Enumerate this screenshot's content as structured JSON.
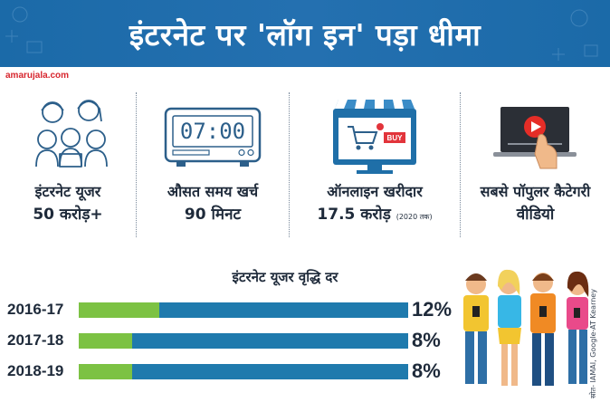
{
  "header": {
    "title": "इंटरनेट पर 'लॉग इन' पड़ा धीमा",
    "brand": "amarujala.com"
  },
  "stats": [
    {
      "label": "इंटरनेट यूजर",
      "value": "50 करोड़+",
      "note": "",
      "icon": "users-group-icon"
    },
    {
      "label": "औसत समय खर्च",
      "value": "90 मिनट",
      "note": "",
      "icon": "digital-clock-icon",
      "clock_text": "07:00"
    },
    {
      "label": "ऑनलाइन खरीदार",
      "value": "17.5 करोड़",
      "note": "(2020 तक)",
      "icon": "online-shopping-monitor-icon",
      "buy_text": "BUY"
    },
    {
      "label": "सबसे पॉपुलर कैटेगरी",
      "value": "वीडियो",
      "note": "",
      "icon": "video-play-laptop-icon"
    }
  ],
  "chart_data": {
    "type": "bar",
    "title": "इंटरनेट यूजर वृद्धि दर",
    "categories": [
      "2016-17",
      "2017-18",
      "2018-19"
    ],
    "values": [
      12,
      8,
      8
    ],
    "value_labels": [
      "12%",
      "8%",
      "8%"
    ],
    "unit": "%",
    "orientation": "horizontal",
    "colors": {
      "fill": "#7cc243",
      "track": "#1f7aad"
    }
  },
  "source": "स्रोत- IAMAI, Google-AT Kearney",
  "colors": {
    "banner": "#1b6aa8",
    "brand": "#d7262e",
    "text": "#1e2a3a",
    "accent_green": "#7cc243",
    "accent_blue": "#1f7aad"
  }
}
